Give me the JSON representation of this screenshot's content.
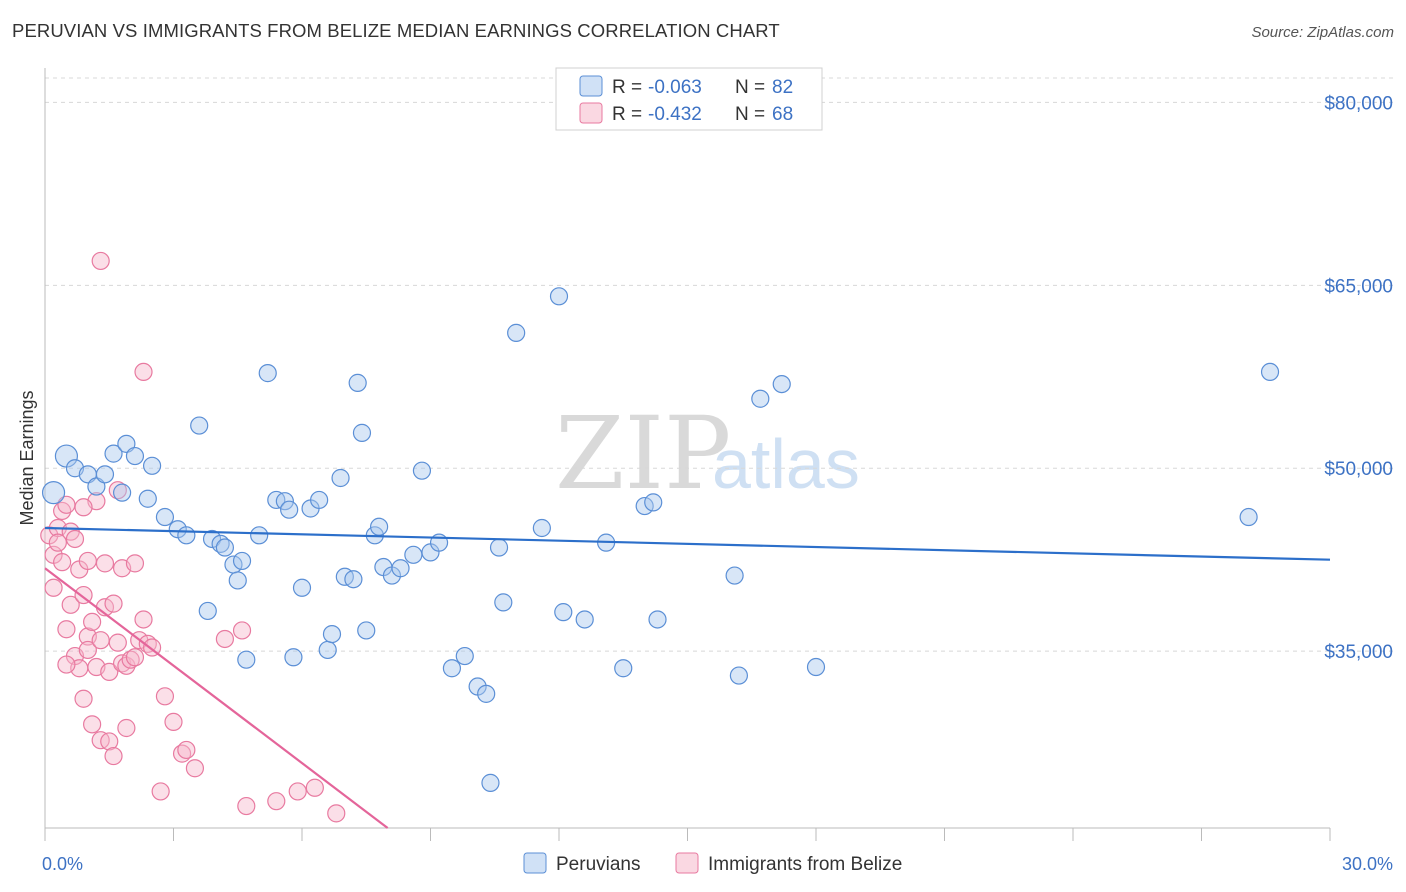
{
  "title": "PERUVIAN VS IMMIGRANTS FROM BELIZE MEDIAN EARNINGS CORRELATION CHART",
  "source": "Source: ZipAtlas.com",
  "watermark": {
    "zip": "ZIP",
    "atlas": "atlas"
  },
  "colors": {
    "blue_fill": "#a9c8ee",
    "blue_stroke": "#5b8fd6",
    "blue_line": "#2c6fca",
    "pink_fill": "#f6b8cb",
    "pink_stroke": "#e87aa0",
    "pink_line": "#e4659a",
    "grid": "#d8d8d8",
    "axis_text": "#3d72c4"
  },
  "legend": {
    "rows": [
      {
        "r_label": "R = ",
        "r_value": "-0.063",
        "n_label": "N = ",
        "n_value": "82"
      },
      {
        "r_label": "R = ",
        "r_value": "-0.432",
        "n_label": "N = ",
        "n_value": "68"
      }
    ]
  },
  "bottom_legend": [
    "Peruvians",
    "Immigrants from Belize"
  ],
  "chart_data": {
    "type": "scatter",
    "title": "PERUVIAN VS IMMIGRANTS FROM BELIZE MEDIAN EARNINGS CORRELATION CHART",
    "xlabel": "",
    "ylabel": "Median Earnings",
    "xlim": [
      0,
      30
    ],
    "ylim": [
      20500,
      82000
    ],
    "x_tick_labels": [
      "0.0%",
      "30.0%"
    ],
    "y_ticks": [
      35000,
      50000,
      65000,
      80000
    ],
    "y_tick_labels": [
      "$35,000",
      "$50,000",
      "$65,000",
      "$80,000"
    ],
    "grid": true,
    "series": [
      {
        "name": "Peruvians",
        "r": -0.063,
        "n": 82,
        "trend": {
          "x": [
            0,
            30
          ],
          "y": [
            45100,
            42500
          ]
        },
        "points": [
          [
            0.2,
            48000
          ],
          [
            0.5,
            51000
          ],
          [
            0.7,
            50000
          ],
          [
            1.0,
            49500
          ],
          [
            1.2,
            48500
          ],
          [
            1.4,
            49500
          ],
          [
            1.6,
            51200
          ],
          [
            1.8,
            48000
          ],
          [
            1.9,
            52000
          ],
          [
            2.1,
            51000
          ],
          [
            2.4,
            47500
          ],
          [
            2.5,
            50200
          ],
          [
            2.8,
            46000
          ],
          [
            3.1,
            45000
          ],
          [
            3.3,
            44500
          ],
          [
            3.6,
            53500
          ],
          [
            3.8,
            38300
          ],
          [
            3.9,
            44200
          ],
          [
            4.1,
            43800
          ],
          [
            4.2,
            43500
          ],
          [
            4.4,
            42100
          ],
          [
            4.5,
            40800
          ],
          [
            4.6,
            42400
          ],
          [
            4.7,
            34300
          ],
          [
            5.0,
            44500
          ],
          [
            5.2,
            57800
          ],
          [
            5.4,
            47400
          ],
          [
            5.6,
            47300
          ],
          [
            5.7,
            46600
          ],
          [
            5.8,
            34500
          ],
          [
            6.0,
            40200
          ],
          [
            6.2,
            46700
          ],
          [
            6.4,
            47400
          ],
          [
            6.6,
            35100
          ],
          [
            6.7,
            36400
          ],
          [
            6.9,
            49200
          ],
          [
            7.0,
            41100
          ],
          [
            7.2,
            40900
          ],
          [
            7.3,
            57000
          ],
          [
            7.4,
            52900
          ],
          [
            7.5,
            36700
          ],
          [
            7.7,
            44500
          ],
          [
            7.8,
            45200
          ],
          [
            7.9,
            41900
          ],
          [
            8.1,
            41200
          ],
          [
            8.3,
            41800
          ],
          [
            8.6,
            42900
          ],
          [
            8.8,
            49800
          ],
          [
            9.0,
            43100
          ],
          [
            9.2,
            43900
          ],
          [
            9.5,
            33600
          ],
          [
            9.8,
            34600
          ],
          [
            10.1,
            32100
          ],
          [
            10.3,
            31500
          ],
          [
            10.4,
            24200
          ],
          [
            10.6,
            43500
          ],
          [
            10.7,
            39000
          ],
          [
            11.0,
            61100
          ],
          [
            11.6,
            45100
          ],
          [
            12.0,
            64100
          ],
          [
            12.1,
            38200
          ],
          [
            12.6,
            37600
          ],
          [
            13.1,
            43900
          ],
          [
            13.5,
            33600
          ],
          [
            14.0,
            46900
          ],
          [
            14.2,
            47200
          ],
          [
            14.3,
            37600
          ],
          [
            16.1,
            41200
          ],
          [
            16.2,
            33000
          ],
          [
            16.7,
            55700
          ],
          [
            17.2,
            56900
          ],
          [
            18.0,
            33700
          ],
          [
            28.1,
            46000
          ],
          [
            28.6,
            57900
          ]
        ]
      },
      {
        "name": "Immigrants from Belize",
        "r": -0.432,
        "n": 68,
        "trend": {
          "x": [
            0,
            8.0
          ],
          "y": [
            41800,
            20500
          ]
        },
        "points": [
          [
            0.1,
            44500
          ],
          [
            0.2,
            42900
          ],
          [
            0.2,
            40200
          ],
          [
            0.3,
            45100
          ],
          [
            0.3,
            43900
          ],
          [
            0.4,
            46500
          ],
          [
            0.4,
            42300
          ],
          [
            0.5,
            47000
          ],
          [
            0.5,
            36800
          ],
          [
            0.6,
            44800
          ],
          [
            0.6,
            38800
          ],
          [
            0.7,
            44200
          ],
          [
            0.7,
            34600
          ],
          [
            0.8,
            41700
          ],
          [
            0.8,
            33600
          ],
          [
            0.9,
            39600
          ],
          [
            0.9,
            31100
          ],
          [
            1.0,
            42400
          ],
          [
            1.0,
            36200
          ],
          [
            1.0,
            35100
          ],
          [
            1.1,
            29000
          ],
          [
            1.1,
            37400
          ],
          [
            1.2,
            47300
          ],
          [
            1.2,
            33700
          ],
          [
            1.3,
            27700
          ],
          [
            1.3,
            35900
          ],
          [
            1.4,
            42200
          ],
          [
            1.4,
            38600
          ],
          [
            1.5,
            33300
          ],
          [
            1.5,
            27600
          ],
          [
            1.6,
            38900
          ],
          [
            1.6,
            26400
          ],
          [
            1.7,
            35700
          ],
          [
            1.7,
            48200
          ],
          [
            1.8,
            41800
          ],
          [
            1.8,
            34000
          ],
          [
            1.9,
            33800
          ],
          [
            1.9,
            28700
          ],
          [
            2.0,
            34300
          ],
          [
            2.1,
            42200
          ],
          [
            2.1,
            34500
          ],
          [
            2.2,
            35900
          ],
          [
            2.3,
            57900
          ],
          [
            2.3,
            37600
          ],
          [
            2.4,
            35600
          ],
          [
            2.5,
            35300
          ],
          [
            2.7,
            23500
          ],
          [
            2.8,
            31300
          ],
          [
            3.0,
            29200
          ],
          [
            3.2,
            26600
          ],
          [
            3.3,
            26900
          ],
          [
            3.5,
            25400
          ],
          [
            4.2,
            36000
          ],
          [
            4.6,
            36700
          ],
          [
            4.7,
            22300
          ],
          [
            5.4,
            22700
          ],
          [
            5.9,
            23500
          ],
          [
            6.3,
            23800
          ],
          [
            6.8,
            21700
          ],
          [
            1.3,
            67000
          ],
          [
            0.5,
            33900
          ],
          [
            0.9,
            46800
          ]
        ]
      }
    ]
  }
}
